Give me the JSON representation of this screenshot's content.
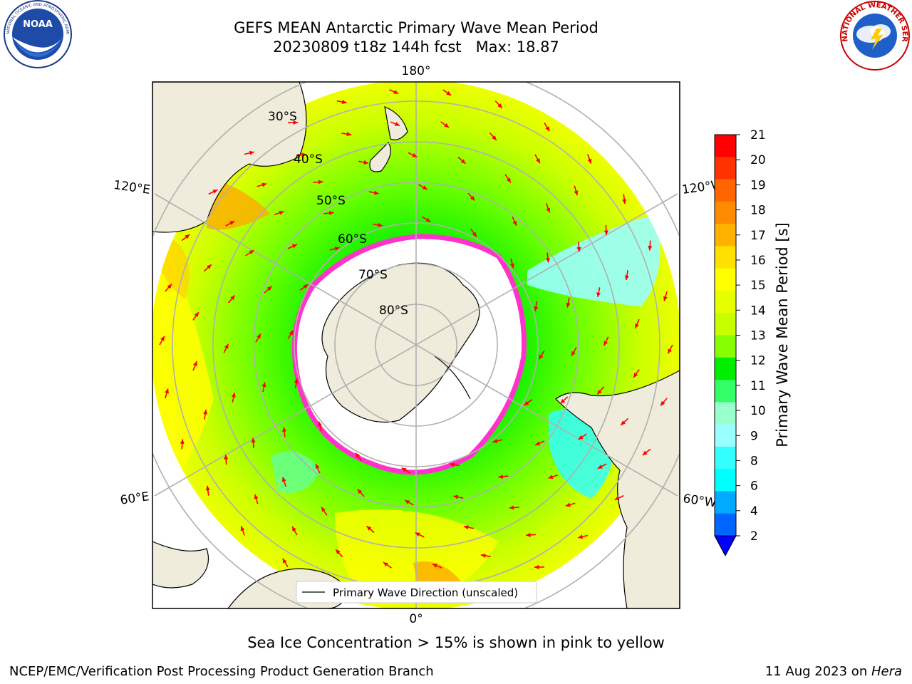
{
  "header": {
    "title_line1": "GEFS MEAN Antarctic Primary Wave Mean Period",
    "title_line2": "20230809 t18z 144h fcst   Max: 18.87"
  },
  "logos": {
    "noaa": {
      "text": "NOAA",
      "ring_text": "NATIONAL OCEANIC AND ATMOSPHERIC ADMINISTRATION · U.S. DEPARTMENT OF COMMERCE"
    },
    "nws": {
      "ring_text": "NATIONAL WEATHER SERVICE"
    }
  },
  "map": {
    "lon_labels": {
      "top": "180°",
      "bottom": "0°",
      "left_upper": "120°E",
      "left_lower": "60°E",
      "right_upper": "120°W",
      "right_lower": "60°W"
    },
    "lat_labels": [
      "30°S",
      "40°S",
      "50°S",
      "60°S",
      "70°S",
      "80°S"
    ],
    "legend_label": "Primary Wave Direction (unscaled)",
    "colors": {
      "land": "#efecdb",
      "arrow": "#ff0000",
      "ice_edge": "#ff33cc",
      "grid": "#b0b0b0"
    }
  },
  "colorbar": {
    "label": "Primary Wave Mean Period [s]",
    "ticks": [
      "21",
      "20",
      "19",
      "18",
      "17",
      "16",
      "15",
      "14",
      "13",
      "12",
      "11",
      "10",
      "9",
      "8",
      "6",
      "4",
      "2"
    ],
    "colors_top_to_bottom": [
      "#ff0000",
      "#ff3300",
      "#ff6600",
      "#ff8c00",
      "#ffb300",
      "#ffe000",
      "#ffff00",
      "#e6ff00",
      "#c8ff00",
      "#88ff00",
      "#00ee00",
      "#33ff66",
      "#99ffcc",
      "#99ffff",
      "#33ffff",
      "#00ffff",
      "#00aaff",
      "#0066ff"
    ],
    "extend_color": "#0000ff"
  },
  "footer": {
    "subtitle": "Sea Ice Concentration > 15% is shown in pink to yellow",
    "left": "NCEP/EMC/Verification Post Processing Product Generation Branch",
    "right_date": "11 Aug 2023 on ",
    "right_machine": "Hera"
  }
}
